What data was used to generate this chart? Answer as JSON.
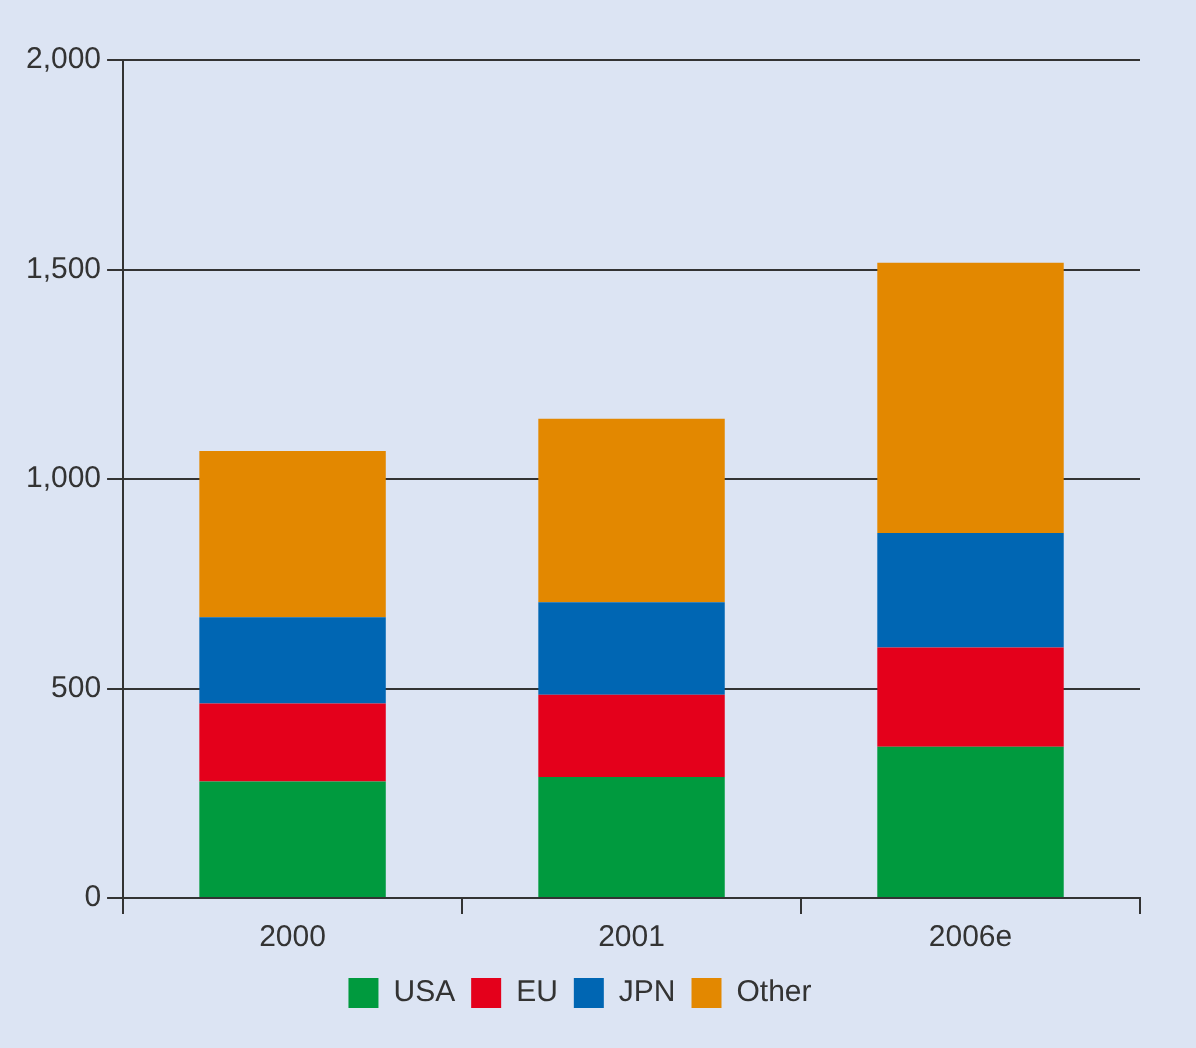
{
  "chart_data": {
    "type": "bar",
    "stacked": true,
    "categories": [
      "2000",
      "2001",
      "2006e"
    ],
    "series": [
      {
        "name": "USA",
        "color": "#009a3e",
        "values": [
          278,
          289,
          361
        ]
      },
      {
        "name": "EU",
        "color": "#e4001b",
        "values": [
          186,
          196,
          237
        ]
      },
      {
        "name": "JPN",
        "color": "#0066b3",
        "values": [
          206,
          221,
          273
        ]
      },
      {
        "name": "Other",
        "color": "#e38800",
        "values": [
          397,
          438,
          645
        ]
      }
    ],
    "ylim": [
      0,
      2000
    ],
    "yticks": [
      0,
      {
        "value": 500,
        "label": "500"
      },
      {
        "value": 1000,
        "label": "1,000"
      },
      {
        "value": 1500,
        "label": "1,500"
      },
      {
        "value": 2000,
        "label": "2,000"
      }
    ],
    "grid": "y",
    "legend": "bottom"
  }
}
